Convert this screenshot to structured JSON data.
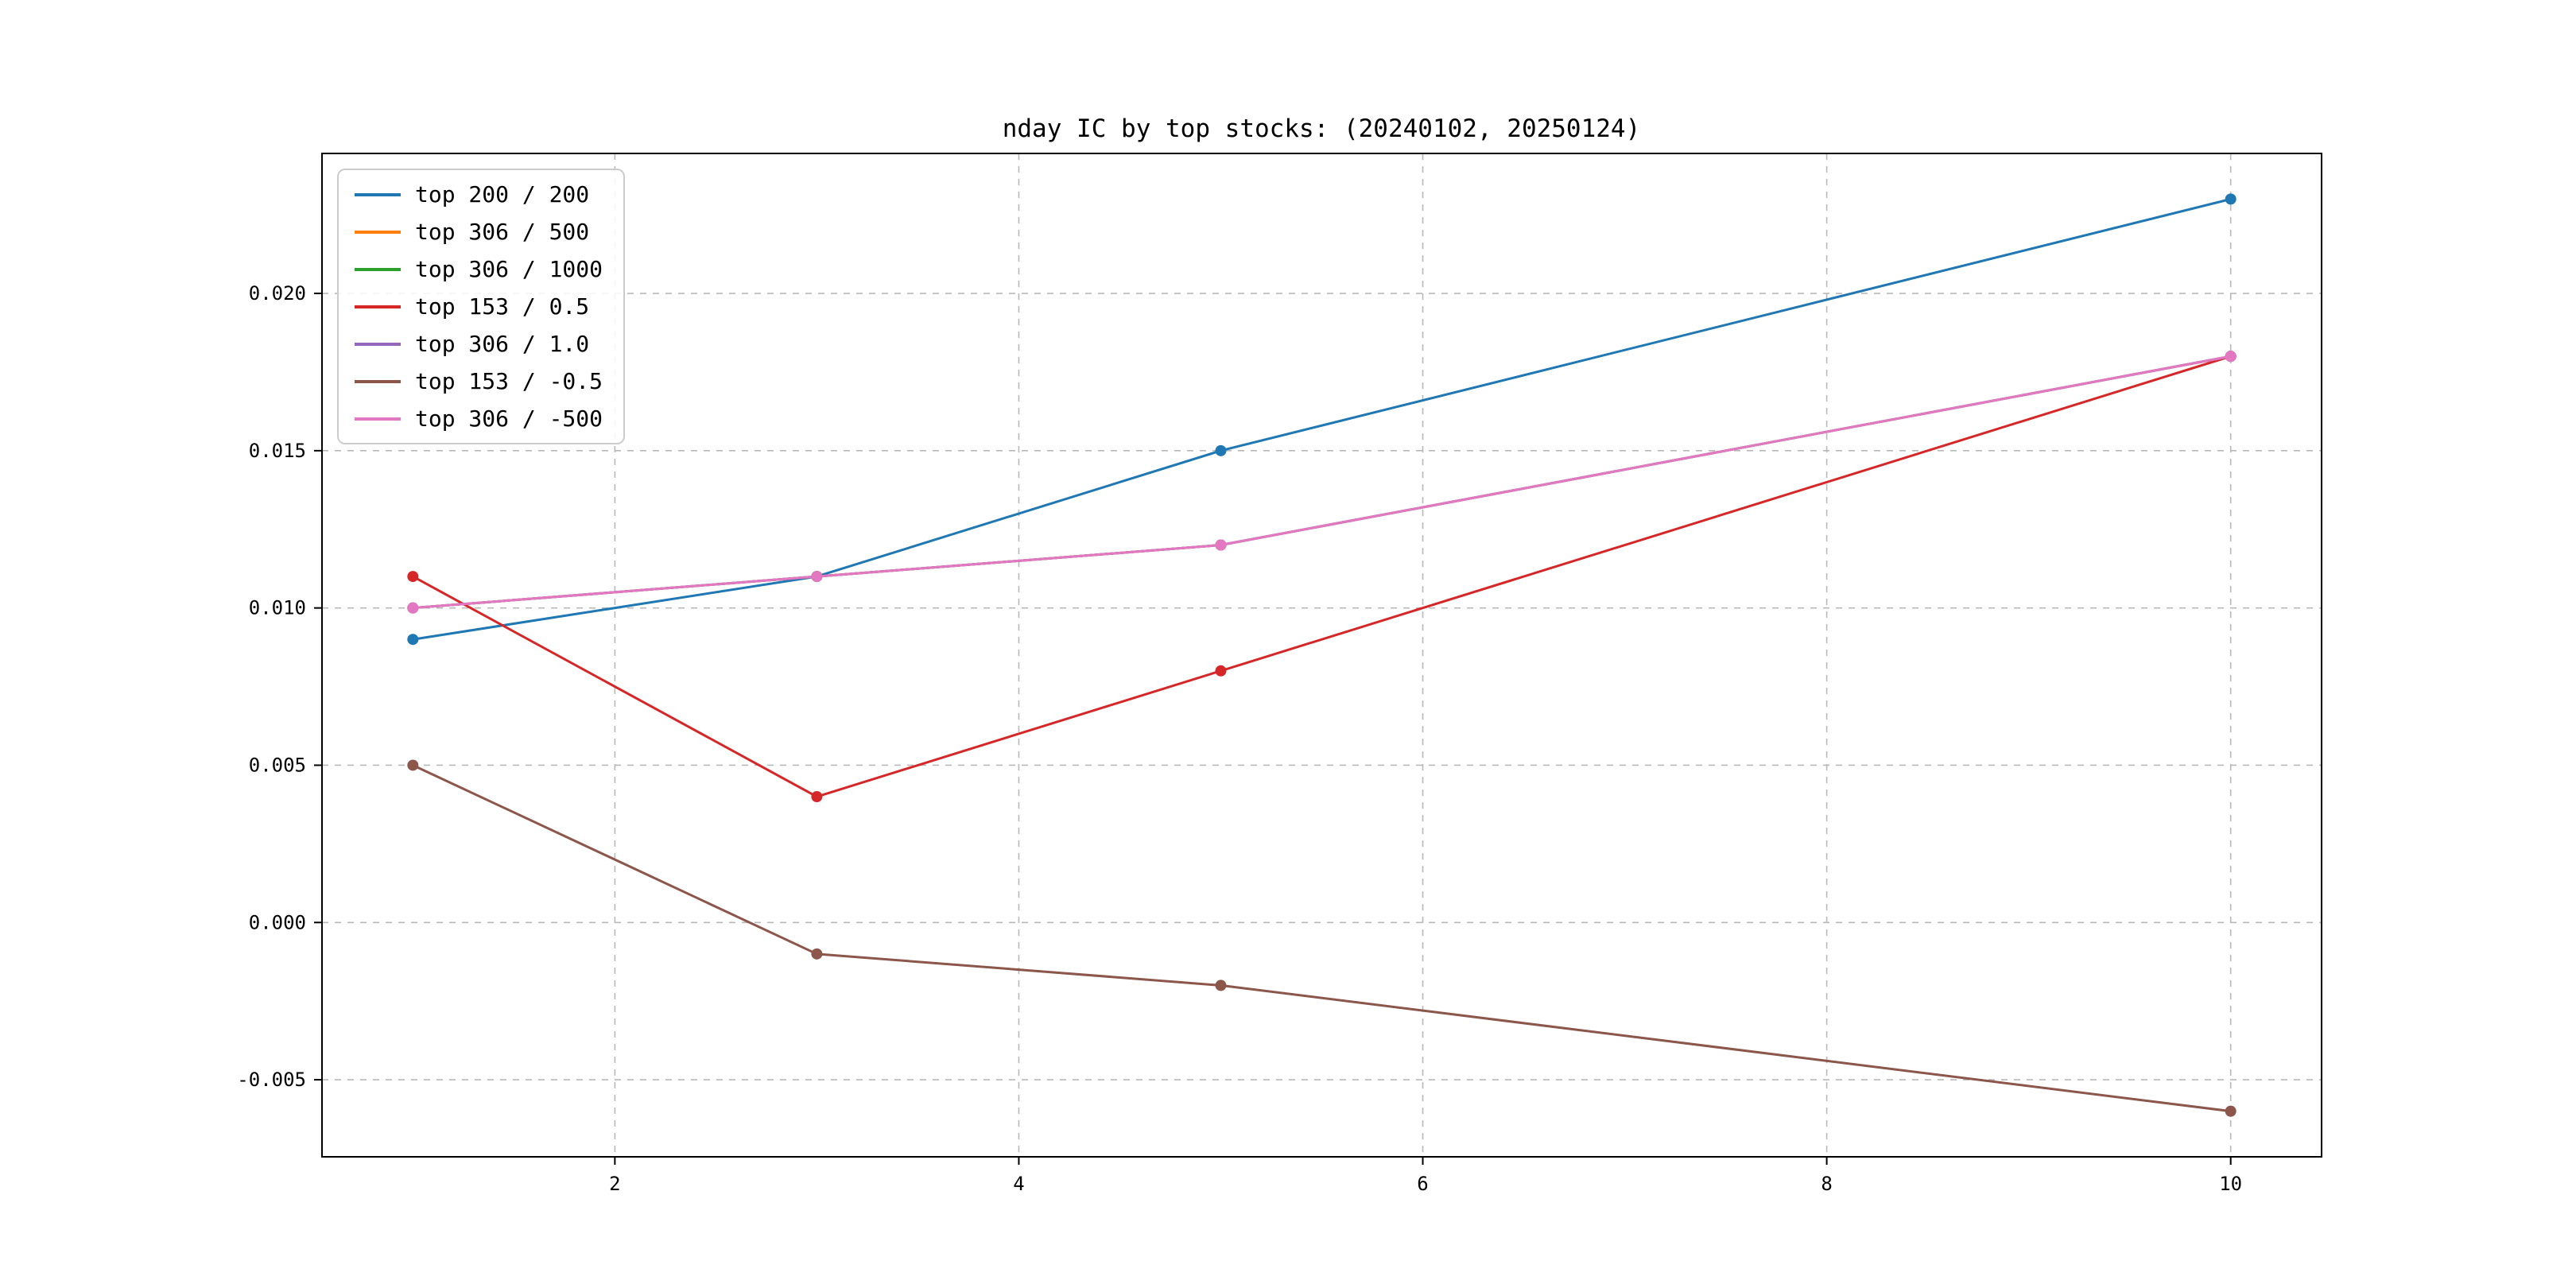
{
  "figure": {
    "background": "#ffffff"
  },
  "chart_data": {
    "type": "line",
    "title": "nday IC by top stocks: (20240102, 20250124)",
    "x": [
      1,
      3,
      5,
      10
    ],
    "xlim": [
      0.55,
      10.45
    ],
    "ylim": [
      -0.00745,
      0.02445
    ],
    "xticks": [
      2,
      4,
      6,
      8,
      10
    ],
    "xtick_labels": [
      "2",
      "4",
      "6",
      "8",
      "10"
    ],
    "yticks": [
      -0.005,
      0.0,
      0.005,
      0.01,
      0.015,
      0.02
    ],
    "ytick_labels": [
      "-0.005",
      "0.000",
      "0.005",
      "0.010",
      "0.015",
      "0.020"
    ],
    "grid": true,
    "grid_style": "dashed",
    "legend_position": "upper-left",
    "xlabel": "",
    "ylabel": "",
    "series": [
      {
        "name": "top 200 / 200",
        "color": "#1f77b4",
        "values": [
          0.009,
          0.011,
          0.015,
          0.023
        ]
      },
      {
        "name": "top 306 / 500",
        "color": "#ff7f0e",
        "values": [
          0.01,
          0.011,
          0.012,
          0.018
        ]
      },
      {
        "name": "top 306 / 1000",
        "color": "#2ca02c",
        "values": [
          0.01,
          0.011,
          0.012,
          0.018
        ]
      },
      {
        "name": "top 153 / 0.5",
        "color": "#d62728",
        "values": [
          0.011,
          0.004,
          0.008,
          0.018
        ]
      },
      {
        "name": "top 306 / 1.0",
        "color": "#9467bd",
        "values": [
          0.01,
          0.011,
          0.012,
          0.018
        ]
      },
      {
        "name": "top 153 / -0.5",
        "color": "#8c564b",
        "values": [
          0.005,
          -0.001,
          -0.002,
          -0.006
        ]
      },
      {
        "name": "top 306 / -500",
        "color": "#e377c2",
        "values": [
          0.01,
          0.011,
          0.012,
          0.018
        ]
      }
    ]
  }
}
